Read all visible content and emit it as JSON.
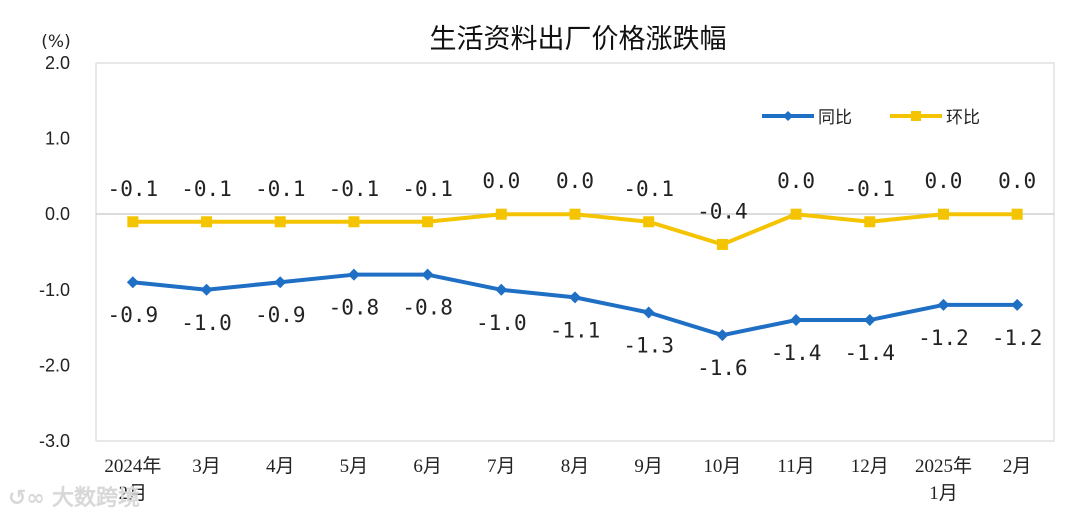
{
  "chart_data": {
    "type": "line",
    "title": "生活资料出厂价格涨跌幅",
    "unit_label": "(%)",
    "ylim": [
      -3.0,
      2.0
    ],
    "yticks": [
      "2.0",
      "1.0",
      "0.0",
      "-1.0",
      "-2.0",
      "-3.0"
    ],
    "ytick_values": [
      2.0,
      1.0,
      0.0,
      -1.0,
      -2.0,
      -3.0
    ],
    "categories": [
      [
        "2024年",
        "2月"
      ],
      [
        "3月"
      ],
      [
        "4月"
      ],
      [
        "5月"
      ],
      [
        "6月"
      ],
      [
        "7月"
      ],
      [
        "8月"
      ],
      [
        "9月"
      ],
      [
        "10月"
      ],
      [
        "11月"
      ],
      [
        "12月"
      ],
      [
        "2025年",
        "1月"
      ],
      [
        "2月"
      ]
    ],
    "series": [
      {
        "name": "同比",
        "color": "#1F6FC5",
        "marker": "diamond",
        "values": [
          -0.9,
          -1.0,
          -0.9,
          -0.8,
          -0.8,
          -1.0,
          -1.1,
          -1.3,
          -1.6,
          -1.4,
          -1.4,
          -1.2,
          -1.2
        ],
        "labels": [
          "-0.9",
          "-1.0",
          "-0.9",
          "-0.8",
          "-0.8",
          "-1.0",
          "-1.1",
          "-1.3",
          "-1.6",
          "-1.4",
          "-1.4",
          "-1.2",
          "-1.2"
        ]
      },
      {
        "name": "环比",
        "color": "#F5C400",
        "marker": "square",
        "values": [
          -0.1,
          -0.1,
          -0.1,
          -0.1,
          -0.1,
          0.0,
          0.0,
          -0.1,
          -0.4,
          0.0,
          -0.1,
          0.0,
          0.0
        ],
        "labels": [
          "-0.1",
          "-0.1",
          "-0.1",
          "-0.1",
          "-0.1",
          "0.0",
          "0.0",
          "-0.1",
          "-0.4",
          "0.0",
          "-0.1",
          "0.0",
          "0.0"
        ]
      }
    ],
    "legend": "top-right",
    "grid": false
  },
  "watermark": "大数跨境"
}
